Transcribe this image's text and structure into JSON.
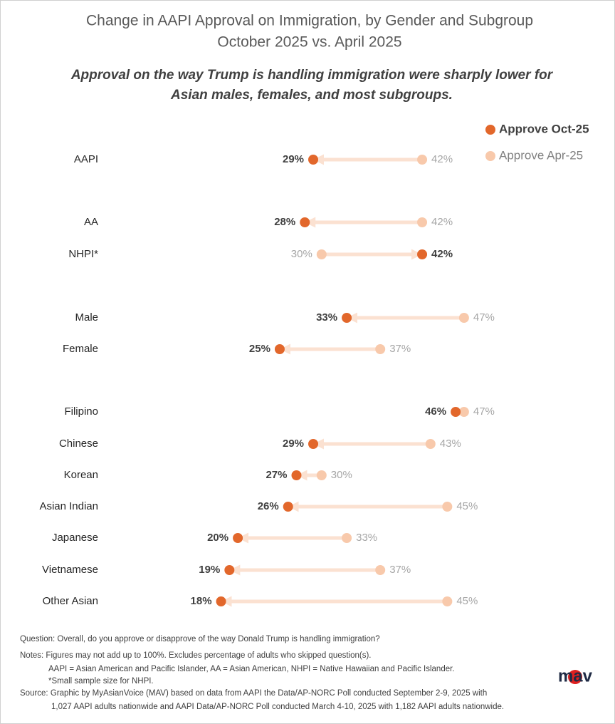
{
  "chart_data": {
    "type": "dumbbell",
    "title": "Change in AAPI Approval on Immigration, by Gender and Subgroup",
    "title_line2": "October 2025 vs. April 2025",
    "subtitle": [
      "Approval on the way Trump is handling immigration were sharply lower for",
      "Asian males, females, and most subgroups."
    ],
    "categories": [
      "AAPI",
      "AA",
      "NHPI*",
      "Male",
      "Female",
      "Filipino",
      "Chinese",
      "Korean",
      "Asian Indian",
      "Japanese",
      "Vietnamese",
      "Other Asian"
    ],
    "series": [
      {
        "name": "Approve Oct-25",
        "color": "#e2672b",
        "values": [
          29,
          28,
          42,
          33,
          25,
          46,
          29,
          27,
          26,
          20,
          19,
          18
        ],
        "value_labels": [
          "29%",
          "28%",
          "42%",
          "33%",
          "25%",
          "46%",
          "29%",
          "27%",
          "26%",
          "20%",
          "19%",
          "18%"
        ]
      },
      {
        "name": "Approve Apr-25",
        "color": "#f8c9ab",
        "values": [
          42,
          42,
          30,
          47,
          37,
          47,
          43,
          30,
          45,
          33,
          37,
          45
        ],
        "value_labels": [
          "42%",
          "42%",
          "30%",
          "47%",
          "37%",
          "47%",
          "43%",
          "30%",
          "45%",
          "33%",
          "37%",
          "45%"
        ]
      }
    ],
    "notes": [
      "Question: Overall, do you approve or disapprove of the way Donald Trump is handling immigration?",
      "Notes: Figures may not add up to 100%. Excludes percentage of adults who skipped question(s).",
      "AAPI = Asian American and Pacific Islander, AA = Asian American, NHPI = Native Hawaiian and Pacific Islander.",
      "*Small sample size for NHPI.",
      "Source: Graphic by MyAsianVoice (MAV) based on data from AAPI the Data/AP-NORC Poll conducted September 2-9, 2025 with",
      "1,027 AAPI adults nationwide and AAPI Data/AP-NORC Poll conducted March 4-10, 2025 with 1,182 AAPI adults nationwide."
    ],
    "logo": "mav"
  }
}
